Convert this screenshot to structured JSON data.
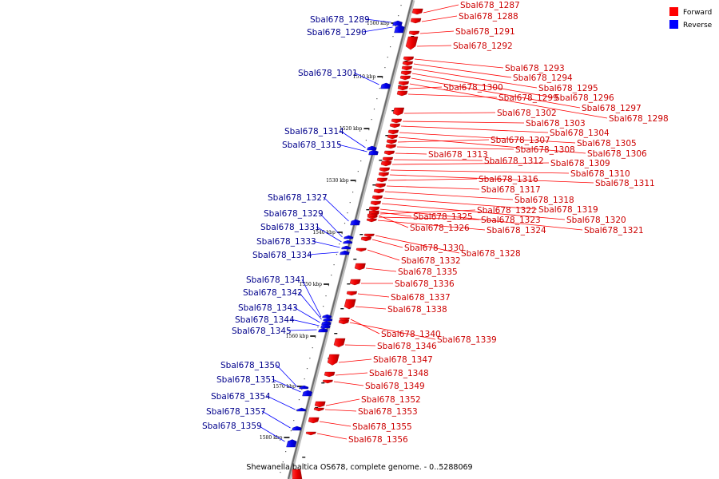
{
  "legend": [
    {
      "label": "Forward",
      "color": "#ff0000"
    },
    {
      "label": "Reverse",
      "color": "#0000ff"
    }
  ],
  "caption": "Shewanella baltica OS678, complete genome. - 0..5288069",
  "scale_ticks": [
    "1500 kbp",
    "1510 kbp",
    "1520 kbp",
    "1530 kbp",
    "1540 kbp",
    "1550 kbp",
    "1560 kbp",
    "1570 kbp",
    "1580 kbp"
  ],
  "genes": [
    {
      "name": "Sbal678_1287",
      "strand": "forward"
    },
    {
      "name": "Sbal678_1288",
      "strand": "forward"
    },
    {
      "name": "Sbal678_1289",
      "strand": "reverse"
    },
    {
      "name": "Sbal678_1290",
      "strand": "reverse"
    },
    {
      "name": "Sbal678_1291",
      "strand": "forward"
    },
    {
      "name": "Sbal678_1292",
      "strand": "forward"
    },
    {
      "name": "Sbal678_1293",
      "strand": "forward"
    },
    {
      "name": "Sbal678_1294",
      "strand": "forward"
    },
    {
      "name": "Sbal678_1295",
      "strand": "forward"
    },
    {
      "name": "Sbal678_1296",
      "strand": "forward"
    },
    {
      "name": "Sbal678_1297",
      "strand": "forward"
    },
    {
      "name": "Sbal678_1298",
      "strand": "forward"
    },
    {
      "name": "Sbal678_1299",
      "strand": "forward"
    },
    {
      "name": "Sbal678_1300",
      "strand": "forward"
    },
    {
      "name": "Sbal678_1301",
      "strand": "reverse"
    },
    {
      "name": "Sbal678_1302",
      "strand": "forward"
    },
    {
      "name": "Sbal678_1303",
      "strand": "forward"
    },
    {
      "name": "Sbal678_1304",
      "strand": "forward"
    },
    {
      "name": "Sbal678_1305",
      "strand": "forward"
    },
    {
      "name": "Sbal678_1306",
      "strand": "forward"
    },
    {
      "name": "Sbal678_1307",
      "strand": "forward"
    },
    {
      "name": "Sbal678_1308",
      "strand": "forward"
    },
    {
      "name": "Sbal678_1309",
      "strand": "forward"
    },
    {
      "name": "Sbal678_1310",
      "strand": "forward"
    },
    {
      "name": "Sbal678_1311",
      "strand": "forward"
    },
    {
      "name": "Sbal678_1312",
      "strand": "forward"
    },
    {
      "name": "Sbal678_1313",
      "strand": "forward"
    },
    {
      "name": "Sbal678_1314",
      "strand": "reverse"
    },
    {
      "name": "Sbal678_1315",
      "strand": "reverse"
    },
    {
      "name": "Sbal678_1316",
      "strand": "forward"
    },
    {
      "name": "Sbal678_1317",
      "strand": "forward"
    },
    {
      "name": "Sbal678_1318",
      "strand": "forward"
    },
    {
      "name": "Sbal678_1319",
      "strand": "forward"
    },
    {
      "name": "Sbal678_1320",
      "strand": "forward"
    },
    {
      "name": "Sbal678_1321",
      "strand": "forward"
    },
    {
      "name": "Sbal678_1322",
      "strand": "forward"
    },
    {
      "name": "Sbal678_1323",
      "strand": "forward"
    },
    {
      "name": "Sbal678_1324",
      "strand": "forward"
    },
    {
      "name": "Sbal678_1325",
      "strand": "forward"
    },
    {
      "name": "Sbal678_1326",
      "strand": "forward"
    },
    {
      "name": "Sbal678_1327",
      "strand": "reverse"
    },
    {
      "name": "Sbal678_1328",
      "strand": "forward"
    },
    {
      "name": "Sbal678_1329",
      "strand": "reverse"
    },
    {
      "name": "Sbal678_1330",
      "strand": "forward"
    },
    {
      "name": "Sbal678_1331",
      "strand": "reverse"
    },
    {
      "name": "Sbal678_1332",
      "strand": "forward"
    },
    {
      "name": "Sbal678_1333",
      "strand": "reverse"
    },
    {
      "name": "Sbal678_1334",
      "strand": "reverse"
    },
    {
      "name": "Sbal678_1335",
      "strand": "forward"
    },
    {
      "name": "Sbal678_1336",
      "strand": "forward"
    },
    {
      "name": "Sbal678_1337",
      "strand": "forward"
    },
    {
      "name": "Sbal678_1338",
      "strand": "forward"
    },
    {
      "name": "Sbal678_1339",
      "strand": "forward"
    },
    {
      "name": "Sbal678_1340",
      "strand": "forward"
    },
    {
      "name": "Sbal678_1341",
      "strand": "reverse"
    },
    {
      "name": "Sbal678_1342",
      "strand": "reverse"
    },
    {
      "name": "Sbal678_1343",
      "strand": "reverse"
    },
    {
      "name": "Sbal678_1344",
      "strand": "reverse"
    },
    {
      "name": "Sbal678_1345",
      "strand": "reverse"
    },
    {
      "name": "Sbal678_1346",
      "strand": "forward"
    },
    {
      "name": "Sbal678_1347",
      "strand": "forward"
    },
    {
      "name": "Sbal678_1348",
      "strand": "forward"
    },
    {
      "name": "Sbal678_1349",
      "strand": "forward"
    },
    {
      "name": "Sbal678_1350",
      "strand": "reverse"
    },
    {
      "name": "Sbal678_1351",
      "strand": "reverse"
    },
    {
      "name": "Sbal678_1352",
      "strand": "forward"
    },
    {
      "name": "Sbal678_1353",
      "strand": "forward"
    },
    {
      "name": "Sbal678_1354",
      "strand": "reverse"
    },
    {
      "name": "Sbal678_1355",
      "strand": "forward"
    },
    {
      "name": "Sbal678_1356",
      "strand": "forward"
    },
    {
      "name": "Sbal678_1357",
      "strand": "reverse"
    },
    {
      "name": "Sbal678_1359",
      "strand": "reverse"
    }
  ]
}
